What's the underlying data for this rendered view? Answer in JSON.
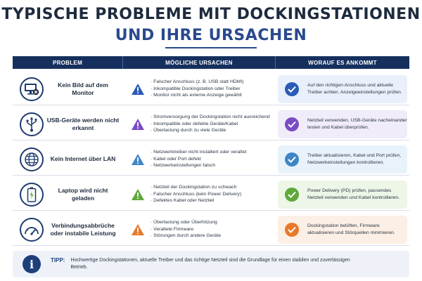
{
  "title": {
    "line1": "TYPISCHE PROBLEME MIT DOCKINGSTATIONEN",
    "line2": "UND IHRE URSACHEN"
  },
  "header": {
    "col1": "PROBLEM",
    "col2": "MÖGLICHE URSACHEN",
    "col3": "WORAUF ES ANKOMMT"
  },
  "rows": [
    {
      "problem": "Kein Bild auf dem Monitor",
      "icon": "monitor-x-icon",
      "accent": "#2b5bb8",
      "card_bg": "#e9f0fb",
      "causes": [
        "Falscher Anschluss (z. B. USB statt HDMI)",
        "Inkompatible Dockingstation oder Treiber",
        "Monitor nicht als externe Anzeige gewählt"
      ],
      "solution": "Auf den richtigen Anschluss und aktuelle Treiber achten. Anzeigeeinstellungen prüfen."
    },
    {
      "problem": "USB-Geräte werden nicht erkannt",
      "icon": "usb-icon",
      "accent": "#7b4bc4",
      "card_bg": "#f1ecfa",
      "causes": [
        "Stromversorgung der Dockingstation nicht ausreichend",
        "Inkompatible oder defekte Geräte/Kabel",
        "Überlastung durch zu viele Geräte"
      ],
      "solution": "Netzteil verwenden, USB-Geräte nacheinander testen und Kabel überprüfen."
    },
    {
      "problem": "Kein Internet über LAN",
      "icon": "globe-icon",
      "accent": "#3f86c6",
      "card_bg": "#e8f2fa",
      "causes": [
        "Netzwerktreiber nicht installiert oder veraltet",
        "Kabel oder Port defekt",
        "Netzwerkeinstellungen falsch"
      ],
      "solution": "Treiber aktualisieren, Kabel und Port prüfen, Netzwerkeinstellungen kontrollieren."
    },
    {
      "problem": "Laptop wird nicht geladen",
      "icon": "battery-icon",
      "accent": "#5fa83a",
      "card_bg": "#edf6e7",
      "causes": [
        "Netzteil der Dockingstation zu schwach",
        "Falscher Anschluss (kein Power Delivery)",
        "Defektes Kabel oder Netzteil"
      ],
      "solution": "Power Delivery (PD) prüfen, passendes Netzteil verwenden und Kabel kontrollieren."
    },
    {
      "problem": "Verbindungsabbrüche oder instabile Leistung",
      "icon": "gauge-icon",
      "accent": "#e8792b",
      "card_bg": "#fcefe5",
      "causes": [
        "Überlastung oder Überhitzung",
        "Veraltete Firmware",
        "Störungen durch andere Geräte"
      ],
      "solution": "Dockingstation belüften, Firmware aktualisieren und Störquellen minimieren."
    }
  ],
  "tip": {
    "icon": "info-icon",
    "label": "TIPP:",
    "text": "Hochwertige Dockingstationen, aktuelle Treiber und das richtige Netzteil sind die Grundlage für einen stabilen und zuverlässigen Betrieb."
  }
}
